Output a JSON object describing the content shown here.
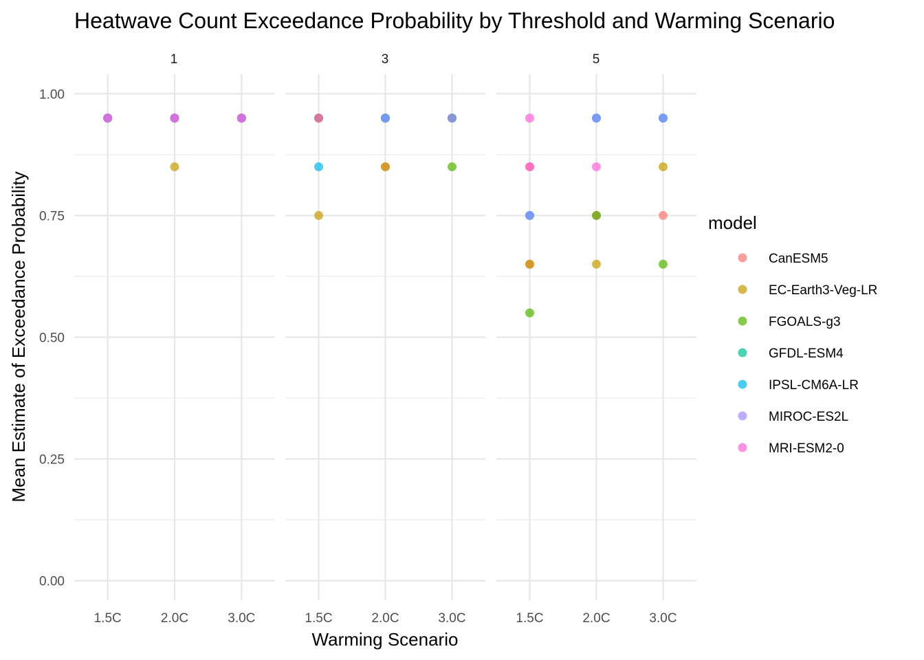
{
  "chart_data": {
    "type": "scatter",
    "title": "Heatwave Count Exceedance Probability by Threshold and Warming Scenario",
    "xlabel": "Warming Scenario",
    "ylabel": "Mean Estimate of Exceedance Probability",
    "categories": [
      "1.5C",
      "2.0C",
      "3.0C"
    ],
    "ylim": [
      -0.04,
      1.04
    ],
    "yticks": [
      0.0,
      0.25,
      0.5,
      0.75,
      1.0
    ],
    "ytick_labels": [
      "0.00",
      "0.25",
      "0.50",
      "0.75",
      "1.00"
    ],
    "grid": true,
    "legend": {
      "title": "model",
      "position": "right"
    },
    "series": [
      {
        "name": "CanESM5",
        "color": "#F8766D"
      },
      {
        "name": "EC-Earth3-Veg-LR",
        "color": "#C49A00"
      },
      {
        "name": "FGOALS-g3",
        "color": "#53B400"
      },
      {
        "name": "GFDL-ESM4",
        "color": "#00C094"
      },
      {
        "name": "IPSL-CM6A-LR",
        "color": "#00B6EB"
      },
      {
        "name": "MIROC-ES2L",
        "color": "#A58AFF"
      },
      {
        "name": "MRI-ESM2-0",
        "color": "#FB61D7"
      }
    ],
    "facets": [
      {
        "label": "1",
        "points": [
          {
            "model": "CanESM5",
            "x": "1.5C",
            "y": 0.95
          },
          {
            "model": "EC-Earth3-Veg-LR",
            "x": "1.5C",
            "y": 0.95
          },
          {
            "model": "FGOALS-g3",
            "x": "1.5C",
            "y": 0.95
          },
          {
            "model": "GFDL-ESM4",
            "x": "1.5C",
            "y": 0.95
          },
          {
            "model": "IPSL-CM6A-LR",
            "x": "1.5C",
            "y": 0.95
          },
          {
            "model": "MIROC-ES2L",
            "x": "1.5C",
            "y": 0.95
          },
          {
            "model": "MRI-ESM2-0",
            "x": "1.5C",
            "y": 0.95
          },
          {
            "model": "CanESM5",
            "x": "2.0C",
            "y": 0.95
          },
          {
            "model": "EC-Earth3-Veg-LR",
            "x": "2.0C",
            "y": 0.85
          },
          {
            "model": "FGOALS-g3",
            "x": "2.0C",
            "y": 0.95
          },
          {
            "model": "GFDL-ESM4",
            "x": "2.0C",
            "y": 0.95
          },
          {
            "model": "IPSL-CM6A-LR",
            "x": "2.0C",
            "y": 0.95
          },
          {
            "model": "MIROC-ES2L",
            "x": "2.0C",
            "y": 0.95
          },
          {
            "model": "MRI-ESM2-0",
            "x": "2.0C",
            "y": 0.95
          },
          {
            "model": "CanESM5",
            "x": "3.0C",
            "y": 0.95
          },
          {
            "model": "EC-Earth3-Veg-LR",
            "x": "3.0C",
            "y": 0.95
          },
          {
            "model": "FGOALS-g3",
            "x": "3.0C",
            "y": 0.95
          },
          {
            "model": "GFDL-ESM4",
            "x": "3.0C",
            "y": 0.95
          },
          {
            "model": "IPSL-CM6A-LR",
            "x": "3.0C",
            "y": 0.95
          },
          {
            "model": "MIROC-ES2L",
            "x": "3.0C",
            "y": 0.95
          },
          {
            "model": "MRI-ESM2-0",
            "x": "3.0C",
            "y": 0.95
          }
        ]
      },
      {
        "label": "3",
        "points": [
          {
            "model": "CanESM5",
            "x": "1.5C",
            "y": 0.95
          },
          {
            "model": "EC-Earth3-Veg-LR",
            "x": "1.5C",
            "y": 0.75
          },
          {
            "model": "FGOALS-g3",
            "x": "1.5C",
            "y": 0.95
          },
          {
            "model": "IPSL-CM6A-LR",
            "x": "1.5C",
            "y": 0.85
          },
          {
            "model": "MRI-ESM2-0",
            "x": "1.5C",
            "y": 0.95
          },
          {
            "model": "CanESM5",
            "x": "2.0C",
            "y": 0.85
          },
          {
            "model": "EC-Earth3-Veg-LR",
            "x": "2.0C",
            "y": 0.85
          },
          {
            "model": "FGOALS-g3",
            "x": "2.0C",
            "y": 0.95
          },
          {
            "model": "GFDL-ESM4",
            "x": "2.0C",
            "y": 0.95
          },
          {
            "model": "IPSL-CM6A-LR",
            "x": "2.0C",
            "y": 0.95
          },
          {
            "model": "MIROC-ES2L",
            "x": "2.0C",
            "y": 0.95
          },
          {
            "model": "CanESM5",
            "x": "3.0C",
            "y": 0.95
          },
          {
            "model": "EC-Earth3-Veg-LR",
            "x": "3.0C",
            "y": 0.95
          },
          {
            "model": "FGOALS-g3",
            "x": "3.0C",
            "y": 0.85
          },
          {
            "model": "GFDL-ESM4",
            "x": "3.0C",
            "y": 0.95
          },
          {
            "model": "MIROC-ES2L",
            "x": "3.0C",
            "y": 0.95
          }
        ]
      },
      {
        "label": "5",
        "points": [
          {
            "model": "CanESM5",
            "x": "1.5C",
            "y": 0.65
          },
          {
            "model": "EC-Earth3-Veg-LR",
            "x": "1.5C",
            "y": 0.65
          },
          {
            "model": "FGOALS-g3",
            "x": "1.5C",
            "y": 0.55
          },
          {
            "model": "GFDL-ESM4",
            "x": "1.5C",
            "y": 0.75
          },
          {
            "model": "IPSL-CM6A-LR",
            "x": "1.5C",
            "y": 0.75
          },
          {
            "model": "MIROC-ES2L",
            "x": "1.5C",
            "y": 0.75
          },
          {
            "model": "CanESM5",
            "x": "1.5C",
            "y": 0.85
          },
          {
            "model": "MRI-ESM2-0",
            "x": "1.5C",
            "y": 0.85
          },
          {
            "model": "MRI-ESM2-0",
            "x": "1.5C",
            "y": 0.95
          },
          {
            "model": "CanESM5",
            "x": "2.0C",
            "y": 0.75
          },
          {
            "model": "FGOALS-g3",
            "x": "2.0C",
            "y": 0.75
          },
          {
            "model": "EC-Earth3-Veg-LR",
            "x": "2.0C",
            "y": 0.65
          },
          {
            "model": "MRI-ESM2-0",
            "x": "2.0C",
            "y": 0.85
          },
          {
            "model": "GFDL-ESM4",
            "x": "2.0C",
            "y": 0.95
          },
          {
            "model": "IPSL-CM6A-LR",
            "x": "2.0C",
            "y": 0.95
          },
          {
            "model": "MIROC-ES2L",
            "x": "2.0C",
            "y": 0.95
          },
          {
            "model": "CanESM5",
            "x": "3.0C",
            "y": 0.75
          },
          {
            "model": "FGOALS-g3",
            "x": "3.0C",
            "y": 0.65
          },
          {
            "model": "EC-Earth3-Veg-LR",
            "x": "3.0C",
            "y": 0.85
          },
          {
            "model": "GFDL-ESM4",
            "x": "3.0C",
            "y": 0.95
          },
          {
            "model": "IPSL-CM6A-LR",
            "x": "3.0C",
            "y": 0.95
          },
          {
            "model": "MIROC-ES2L",
            "x": "3.0C",
            "y": 0.95
          }
        ]
      }
    ]
  }
}
